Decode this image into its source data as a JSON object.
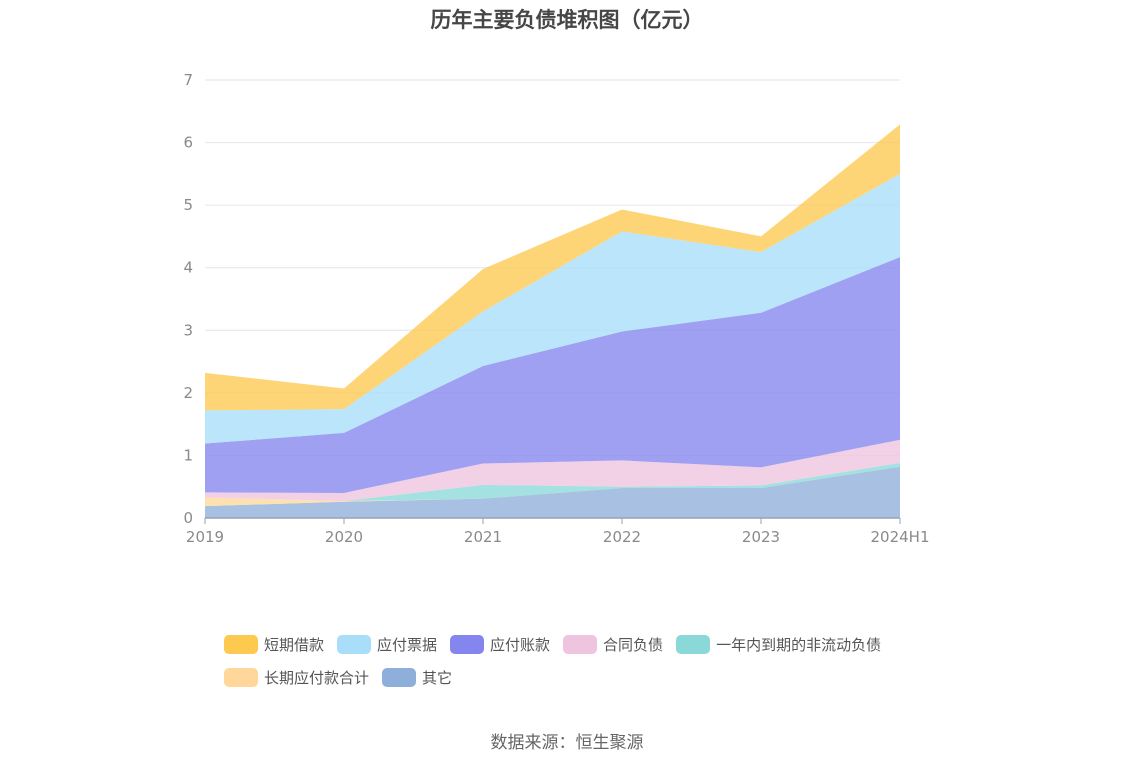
{
  "chart_data": {
    "type": "area",
    "stacked": true,
    "title": "历年主要负债堆积图（亿元）",
    "categories": [
      "2019",
      "2020",
      "2021",
      "2022",
      "2023",
      "2024H1"
    ],
    "yticks": [
      "0",
      "1",
      "2",
      "3",
      "4",
      "5",
      "6",
      "7"
    ],
    "ylim": [
      0,
      7
    ],
    "grid": true,
    "legend_position": "bottom",
    "series": [
      {
        "name": "其它",
        "color": "#8fafdb",
        "values": [
          0.19,
          0.26,
          0.31,
          0.48,
          0.48,
          0.82
        ]
      },
      {
        "name": "长期应付款合计",
        "color": "#ffd79b",
        "values": [
          0.14,
          0.01,
          0.0,
          0.0,
          0.0,
          0.0
        ]
      },
      {
        "name": "一年内到期的非流动负债",
        "color": "#8ad8d8",
        "values": [
          0.0,
          0.0,
          0.22,
          0.02,
          0.04,
          0.06
        ]
      },
      {
        "name": "合同负债",
        "color": "#eec4df",
        "values": [
          0.08,
          0.13,
          0.34,
          0.42,
          0.29,
          0.37
        ]
      },
      {
        "name": "应付账款",
        "color": "#8585f0",
        "values": [
          0.78,
          0.96,
          1.56,
          2.06,
          2.47,
          2.92
        ]
      },
      {
        "name": "应付票据",
        "color": "#a8def9",
        "values": [
          0.53,
          0.38,
          0.87,
          1.6,
          0.97,
          1.33
        ]
      },
      {
        "name": "短期借款",
        "color": "#fdc94f",
        "values": [
          0.6,
          0.33,
          0.68,
          0.35,
          0.25,
          0.79
        ]
      }
    ]
  },
  "legend": {
    "rows": [
      [
        {
          "label": "短期借款",
          "color": "#fdc94f"
        },
        {
          "label": "应付票据",
          "color": "#a8def9"
        },
        {
          "label": "应付账款",
          "color": "#8585f0"
        },
        {
          "label": "合同负债",
          "color": "#eec4df"
        },
        {
          "label": "一年内到期的非流动负债",
          "color": "#8ad8d8"
        }
      ],
      [
        {
          "label": "长期应付款合计",
          "color": "#ffd79b"
        },
        {
          "label": "其它",
          "color": "#8fafdb"
        }
      ]
    ]
  },
  "source": "数据来源：恒生聚源"
}
